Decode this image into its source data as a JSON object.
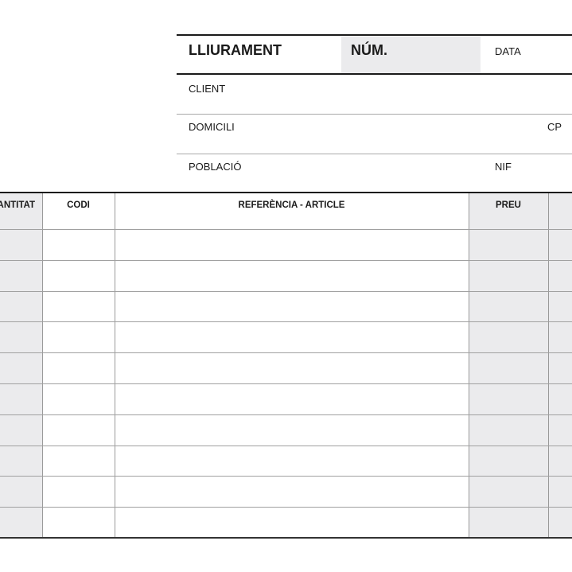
{
  "header": {
    "title": "LLIURAMENT",
    "number_label": "NÚM.",
    "date_label": "DATA",
    "client_label": "CLIENT",
    "address_label": "DOMICILI",
    "postal_code_label": "CP",
    "city_label": "POBLACIÓ",
    "tax_id_label": "NIF"
  },
  "table": {
    "columns": [
      "ANTITAT",
      "CODI",
      "REFERÈNCIA - ARTICLE",
      "PREU",
      ""
    ],
    "row_count": 10,
    "shade_color": "#ebebed"
  }
}
